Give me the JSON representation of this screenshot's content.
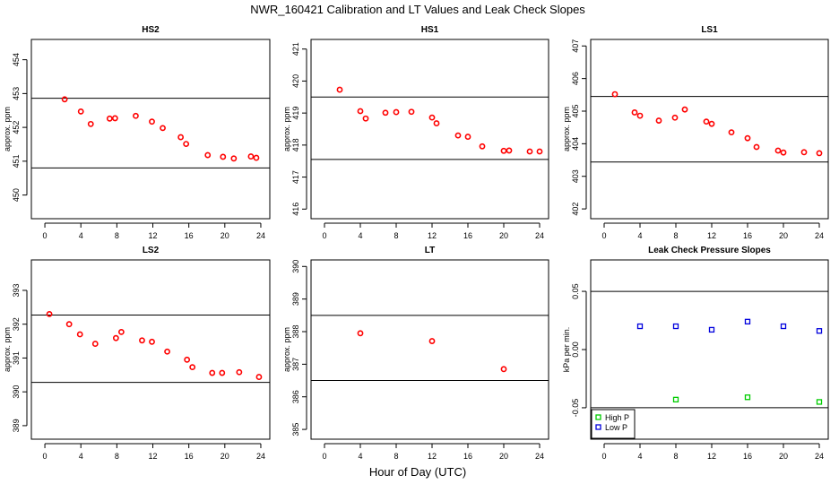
{
  "figure": {
    "title": "NWR_160421  Calibration and LT Values and Leak Check Slopes",
    "xlabel": "Hour of Day (UTC)"
  },
  "chart_data": [
    {
      "type": "scatter",
      "title": "HS2",
      "ylabel": "approx. ppm",
      "xlim": [
        -1.5,
        25
      ],
      "ylim": [
        449.3,
        454.6
      ],
      "xticks": [
        0,
        4,
        8,
        12,
        16,
        20,
        24
      ],
      "yticks": [
        450,
        451,
        452,
        453,
        454
      ],
      "hlines": [
        452.86,
        450.8
      ],
      "series": [
        {
          "marker": "circle",
          "color": "#ff0000",
          "x": [
            2.2,
            4,
            5.1,
            7.2,
            7.8,
            10.1,
            11.9,
            13.1,
            15.1,
            15.7,
            18.1,
            19.8,
            21,
            22.9,
            23.5
          ],
          "y": [
            452.83,
            452.47,
            452.1,
            452.26,
            452.27,
            452.34,
            452.17,
            451.98,
            451.71,
            451.51,
            451.18,
            451.13,
            451.08,
            451.14,
            451.1
          ]
        }
      ]
    },
    {
      "type": "scatter",
      "title": "HS1",
      "ylabel": "approx. ppm",
      "xlim": [
        -1.5,
        25
      ],
      "ylim": [
        415.7,
        421.3
      ],
      "xticks": [
        0,
        4,
        8,
        12,
        16,
        20,
        24
      ],
      "yticks": [
        416,
        417,
        418,
        419,
        420,
        421
      ],
      "hlines": [
        419.5,
        417.55
      ],
      "series": [
        {
          "marker": "circle",
          "color": "#ff0000",
          "x": [
            1.7,
            4,
            4.6,
            6.8,
            8,
            9.7,
            12,
            12.5,
            14.9,
            16,
            17.6,
            20,
            20.6,
            22.9,
            24
          ],
          "y": [
            419.73,
            419.06,
            418.83,
            419.01,
            419.03,
            419.04,
            418.86,
            418.68,
            418.3,
            418.26,
            417.96,
            417.82,
            417.83,
            417.8,
            417.8
          ]
        }
      ]
    },
    {
      "type": "scatter",
      "title": "LS1",
      "ylabel": "approx. ppm",
      "xlim": [
        -1.5,
        25
      ],
      "ylim": [
        401.7,
        407.2
      ],
      "xticks": [
        0,
        4,
        8,
        12,
        16,
        20,
        24
      ],
      "yticks": [
        402,
        403,
        404,
        405,
        406,
        407
      ],
      "hlines": [
        405.45,
        403.44
      ],
      "series": [
        {
          "marker": "circle",
          "color": "#ff0000",
          "x": [
            1.2,
            3.4,
            4,
            6.1,
            7.9,
            9,
            11.4,
            12,
            14.2,
            16,
            17,
            19.4,
            20,
            22.3,
            24
          ],
          "y": [
            405.52,
            404.96,
            404.86,
            404.71,
            404.8,
            405.05,
            404.68,
            404.61,
            404.35,
            404.17,
            403.9,
            403.79,
            403.73,
            403.74,
            403.71
          ]
        }
      ]
    },
    {
      "type": "scatter",
      "title": "LS2",
      "ylabel": "approx. ppm",
      "xlim": [
        -1.5,
        25
      ],
      "ylim": [
        388.6,
        393.9
      ],
      "xticks": [
        0,
        4,
        8,
        12,
        16,
        20,
        24
      ],
      "yticks": [
        389,
        390,
        391,
        392,
        393
      ],
      "hlines": [
        392.27,
        390.28
      ],
      "series": [
        {
          "marker": "circle",
          "color": "#ff0000",
          "x": [
            0.5,
            2.7,
            3.9,
            5.6,
            7.9,
            8.5,
            10.8,
            11.9,
            13.6,
            15.8,
            16.4,
            18.6,
            19.7,
            21.6,
            23.8
          ],
          "y": [
            392.3,
            392.0,
            391.7,
            391.42,
            391.59,
            391.77,
            391.52,
            391.48,
            391.19,
            390.95,
            390.73,
            390.56,
            390.56,
            390.58,
            390.44
          ]
        }
      ]
    },
    {
      "type": "scatter",
      "title": "LT",
      "ylabel": "approx. ppm",
      "xlim": [
        -1.5,
        25
      ],
      "ylim": [
        384.7,
        390.2
      ],
      "xticks": [
        0,
        4,
        8,
        12,
        16,
        20,
        24
      ],
      "yticks": [
        385,
        386,
        387,
        388,
        389,
        390
      ],
      "hlines": [
        388.5,
        386.5
      ],
      "series": [
        {
          "marker": "circle",
          "color": "#ff0000",
          "x": [
            4,
            12,
            20
          ],
          "y": [
            387.95,
            387.71,
            386.85
          ]
        }
      ]
    },
    {
      "type": "scatter",
      "title": "Leak Check Pressure Slopes",
      "ylabel": "kPa per min.",
      "xlim": [
        -1.5,
        25
      ],
      "ylim": [
        -0.077,
        0.077
      ],
      "xticks": [
        0,
        4,
        8,
        12,
        16,
        20,
        24
      ],
      "yticks": [
        -0.05,
        0,
        0.05
      ],
      "ytick_labels": [
        "-0.05",
        "0.00",
        "0.05"
      ],
      "hlines": [
        0.05,
        -0.05
      ],
      "legend_position": "bottom-left",
      "series": [
        {
          "name": "High P",
          "marker": "square",
          "color": "#00cc00",
          "x": [
            8,
            16,
            24
          ],
          "y": [
            -0.043,
            -0.041,
            -0.045
          ]
        },
        {
          "name": "Low P",
          "marker": "square",
          "color": "#0000dd",
          "x": [
            4,
            8,
            12,
            16,
            20,
            24
          ],
          "y": [
            0.02,
            0.02,
            0.017,
            0.024,
            0.02,
            0.016
          ]
        }
      ]
    }
  ]
}
